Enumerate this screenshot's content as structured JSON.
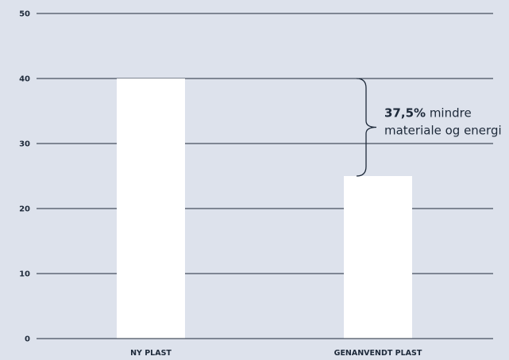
{
  "chart_data": {
    "type": "bar",
    "categories": [
      "NY PLAST",
      "GENANVENDT PLAST"
    ],
    "values": [
      40,
      25
    ],
    "title": "",
    "xlabel": "",
    "ylabel": "",
    "ylim": [
      0,
      50
    ],
    "yticks": [
      0,
      10,
      20,
      30,
      40,
      50
    ],
    "grid": true,
    "bar_color": "#ffffff",
    "gridline_color": "#1e2a3a",
    "annotation": {
      "bold": "37,5%",
      "line1_rest": " mindre",
      "line2": "materiale og energi",
      "from_value": 40,
      "to_value": 25
    }
  }
}
